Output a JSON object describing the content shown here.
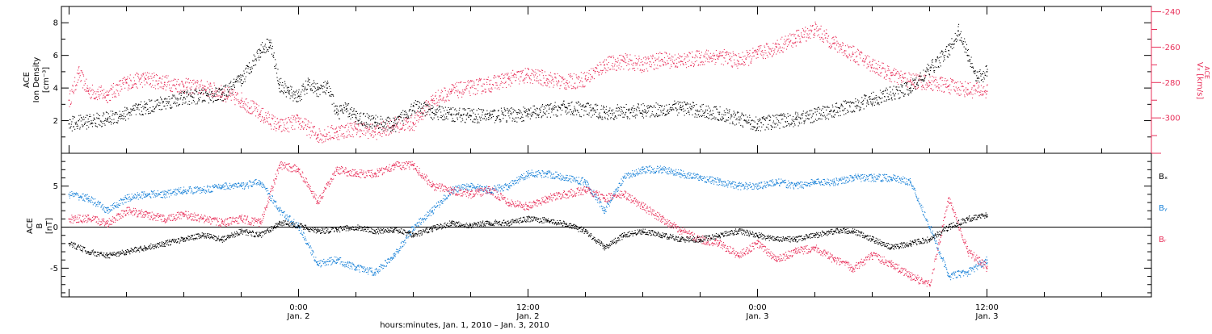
{
  "colors": {
    "axis": "#000000",
    "density": "#000000",
    "vx": "#e8305a",
    "bx": "#000000",
    "by": "#1a82d8",
    "bz": "#e8305a"
  },
  "chart_data": [
    {
      "type": "scatter",
      "panel": "top",
      "ylabel_lines": [
        "ACE",
        "Ion Density",
        "[cm⁻³]"
      ],
      "yticks": [
        2,
        4,
        6,
        8
      ],
      "ylim": [
        0,
        9
      ],
      "y2label": "Vₓ [km/s]",
      "y2label_super": "ACE",
      "y2ticks": [
        -240,
        -260,
        -280,
        -300
      ],
      "y2lim": [
        -320,
        -237
      ],
      "series": [
        {
          "name": "",
          "axis": "left",
          "color_key": "density",
          "x": [
            -12,
            -10,
            -8,
            -6,
            -4,
            -3,
            -2,
            -1.5,
            -1,
            -0.5,
            0,
            0.5,
            1,
            1.5,
            2,
            2.5,
            3,
            4,
            5,
            6,
            7,
            8,
            9,
            10,
            12,
            14,
            16,
            18,
            20,
            22,
            24,
            26,
            28,
            30,
            32,
            34,
            34.5,
            35,
            35.5,
            36
          ],
          "y": [
            1.8,
            2.1,
            2.8,
            3.4,
            3.6,
            4.5,
            6.3,
            6.8,
            4.2,
            3.7,
            3.5,
            4.2,
            3.9,
            4.0,
            2.5,
            2.7,
            2.2,
            1.9,
            1.7,
            2.9,
            2.5,
            2.4,
            2.3,
            2.3,
            2.4,
            2.8,
            2.5,
            2.6,
            2.8,
            2.4,
            1.8,
            2.1,
            2.6,
            3.3,
            4.0,
            6.3,
            7.5,
            6.0,
            4.6,
            5.0
          ]
        },
        {
          "name": "",
          "axis": "right",
          "color_key": "vx",
          "x": [
            -12,
            -11.5,
            -11,
            -10,
            -9,
            -8,
            -7,
            -6,
            -5,
            -4,
            -3,
            -2,
            -1,
            0,
            1,
            2,
            3,
            4,
            5,
            6,
            7,
            8,
            9,
            10,
            11,
            12,
            13,
            14,
            15,
            16,
            17,
            18,
            19,
            20,
            21,
            22,
            23,
            24,
            25,
            26,
            27,
            28,
            29,
            30,
            31,
            32,
            33,
            34,
            35,
            36
          ],
          "y": [
            -290,
            -275,
            -285,
            -287,
            -280,
            -278,
            -280,
            -282,
            -283,
            -286,
            -290,
            -298,
            -305,
            -302,
            -310,
            -308,
            -306,
            -308,
            -304,
            -303,
            -290,
            -285,
            -283,
            -281,
            -278,
            -276,
            -278,
            -280,
            -278,
            -270,
            -268,
            -270,
            -267,
            -268,
            -266,
            -265,
            -268,
            -264,
            -260,
            -255,
            -250,
            -258,
            -264,
            -270,
            -276,
            -279,
            -280,
            -282,
            -284,
            -285
          ]
        }
      ]
    },
    {
      "type": "scatter",
      "panel": "bottom",
      "ylabel_lines": [
        "ACE",
        "B",
        "[nT]"
      ],
      "yticks": [
        -5,
        0,
        5
      ],
      "ylim": [
        -8.5,
        9
      ],
      "series": [
        {
          "name": "Bₓ",
          "color_key": "bx",
          "x": [
            -12,
            -11,
            -10,
            -9,
            -8,
            -7,
            -6,
            -5,
            -4,
            -3,
            -2,
            -1,
            0,
            1,
            2,
            3,
            4,
            5,
            6,
            7,
            8,
            9,
            10,
            11,
            12,
            13,
            14,
            15,
            16,
            17,
            18,
            19,
            20,
            21,
            22,
            23,
            24,
            25,
            26,
            27,
            28,
            29,
            30,
            31,
            32,
            33,
            34,
            35,
            36
          ],
          "y": [
            -2.0,
            -3.0,
            -3.5,
            -3.0,
            -2.5,
            -2.0,
            -1.5,
            -1.0,
            -1.5,
            -0.5,
            -1.0,
            0.5,
            0.2,
            -0.5,
            -0.3,
            0.0,
            -0.5,
            -0.3,
            -1.0,
            -0.2,
            0.5,
            0.2,
            0.5,
            0.5,
            1.0,
            0.8,
            0.3,
            -0.5,
            -2.5,
            -1.0,
            -0.5,
            -1.0,
            -1.5,
            -1.5,
            -1.0,
            -0.5,
            -1.0,
            -1.5,
            -1.5,
            -1.0,
            -0.5,
            -0.5,
            -1.5,
            -2.5,
            -2.0,
            -1.5,
            0.0,
            1.0,
            1.5
          ]
        },
        {
          "name": "Bᵧ",
          "color_key": "by",
          "x": [
            -12,
            -11,
            -10,
            -9,
            -8,
            -7,
            -6,
            -5,
            -4,
            -3,
            -2,
            -1,
            0,
            1,
            2,
            3,
            4,
            5,
            6,
            7,
            8,
            9,
            10,
            11,
            12,
            13,
            14,
            15,
            16,
            17,
            18,
            19,
            20,
            21,
            22,
            23,
            24,
            25,
            26,
            27,
            28,
            29,
            30,
            31,
            32,
            33,
            34,
            35,
            36
          ],
          "y": [
            4.0,
            3.5,
            2.0,
            3.5,
            4.0,
            4.0,
            4.5,
            4.5,
            5.0,
            5.0,
            5.5,
            2.0,
            0.0,
            -4.5,
            -4.0,
            -5.0,
            -5.5,
            -3.5,
            0.0,
            2.0,
            4.5,
            5.0,
            4.5,
            5.0,
            6.5,
            6.5,
            6.0,
            5.5,
            2.0,
            6.0,
            7.0,
            7.0,
            6.5,
            6.0,
            5.5,
            5.0,
            5.0,
            5.5,
            5.0,
            5.5,
            5.5,
            6.0,
            6.0,
            6.0,
            5.5,
            0.0,
            -6.0,
            -5.5,
            -4.0
          ]
        },
        {
          "name": "Bᵣ",
          "color_key": "bz",
          "x": [
            -12,
            -11,
            -10,
            -9,
            -8,
            -7,
            -6,
            -5,
            -4,
            -3,
            -2,
            -1,
            0,
            1,
            2,
            3,
            4,
            5,
            6,
            7,
            8,
            9,
            10,
            11,
            12,
            13,
            14,
            15,
            16,
            17,
            18,
            19,
            20,
            21,
            22,
            23,
            24,
            25,
            26,
            27,
            28,
            29,
            30,
            31,
            32,
            33,
            34,
            35,
            36
          ],
          "y": [
            1.0,
            1.0,
            0.5,
            2.0,
            1.5,
            1.0,
            1.5,
            1.0,
            0.5,
            1.0,
            0.5,
            7.5,
            7.0,
            3.0,
            7.0,
            6.5,
            6.5,
            7.5,
            7.5,
            5.0,
            4.5,
            4.0,
            4.5,
            3.0,
            2.5,
            3.5,
            4.0,
            4.5,
            3.5,
            4.0,
            2.5,
            1.0,
            -0.5,
            -1.5,
            -2.0,
            -3.5,
            -2.0,
            -4.0,
            -3.0,
            -2.5,
            -4.0,
            -5.0,
            -3.5,
            -4.5,
            -6.0,
            -7.0,
            3.5,
            -3.0,
            -5.0
          ]
        }
      ]
    }
  ],
  "x_axis": {
    "range_hours": [
      -12.4,
      44.6
    ],
    "major": [
      {
        "hour": 0,
        "time": "0:00",
        "day": "Jan. 2"
      },
      {
        "hour": 12,
        "time": "12:00",
        "day": "Jan. 2"
      },
      {
        "hour": 24,
        "time": "0:00",
        "day": "Jan. 3"
      },
      {
        "hour": 36,
        "time": "12:00",
        "day": "Jan. 3"
      }
    ],
    "xlabel": "hours:minutes, Jan.  1, 2010 – Jan.  3, 2010"
  },
  "legend": {
    "bx": "Bₓ",
    "by": "Bᵧ",
    "bz": "Bᵣ"
  }
}
